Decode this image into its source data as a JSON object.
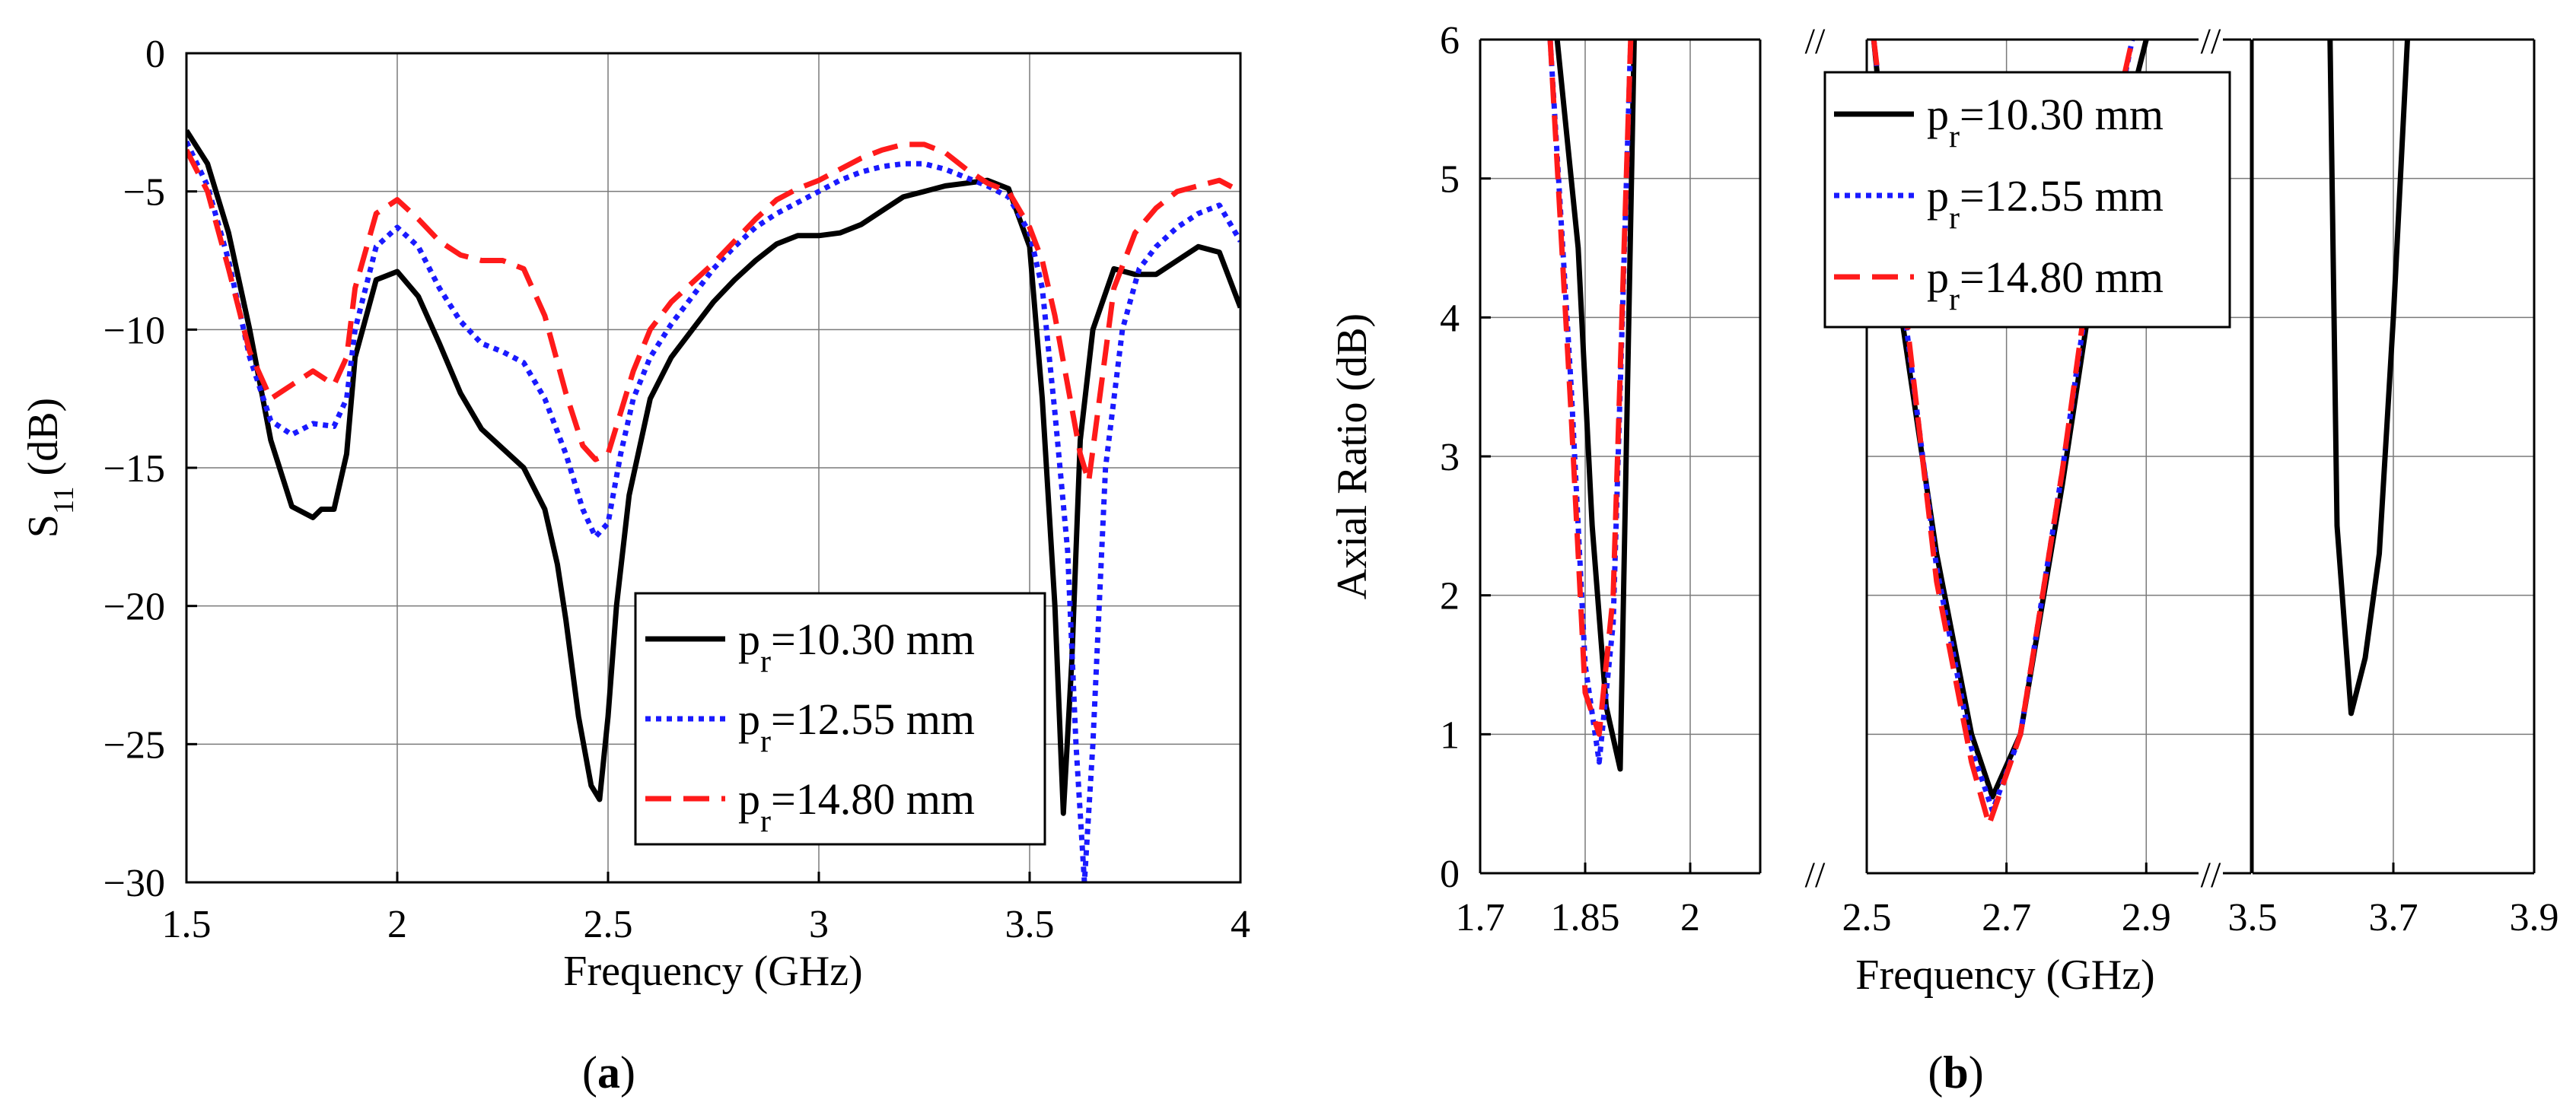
{
  "chart_data": [
    {
      "type": "line",
      "panel_label": "a",
      "xlabel": "Frequency (GHz)",
      "ylabel_main": "S",
      "ylabel_sub": "11",
      "ylabel_unit": " (dB)",
      "xlim": [
        1.5,
        4
      ],
      "ylim": [
        -30,
        0
      ],
      "xticks": [
        "1.5",
        "2",
        "2.5",
        "3",
        "3.5",
        "4"
      ],
      "yticks": [
        "0",
        "−5",
        "−10",
        "−15",
        "−20",
        "−25",
        "−30"
      ],
      "grid": true,
      "legend_position": "bottom-right",
      "series": [
        {
          "name_base": "p",
          "name_sub": "r",
          "name_rest": "=10.30 mm",
          "color": "#000000",
          "dash": "solid",
          "x": [
            1.5,
            1.55,
            1.6,
            1.65,
            1.7,
            1.75,
            1.8,
            1.82,
            1.85,
            1.88,
            1.9,
            1.95,
            2.0,
            2.05,
            2.1,
            2.15,
            2.2,
            2.25,
            2.3,
            2.35,
            2.38,
            2.4,
            2.43,
            2.46,
            2.48,
            2.5,
            2.52,
            2.55,
            2.6,
            2.65,
            2.7,
            2.75,
            2.8,
            2.85,
            2.9,
            2.95,
            3.0,
            3.05,
            3.1,
            3.15,
            3.2,
            3.25,
            3.3,
            3.35,
            3.4,
            3.45,
            3.5,
            3.53,
            3.56,
            3.58,
            3.6,
            3.62,
            3.65,
            3.7,
            3.75,
            3.8,
            3.85,
            3.9,
            3.95,
            4.0
          ],
          "y": [
            -2.8,
            -4.0,
            -6.5,
            -10.0,
            -14.0,
            -16.4,
            -16.8,
            -16.5,
            -16.5,
            -14.5,
            -11.0,
            -8.2,
            -7.9,
            -8.8,
            -10.5,
            -12.3,
            -13.6,
            -14.3,
            -15.0,
            -16.5,
            -18.5,
            -20.5,
            -24.0,
            -26.5,
            -27.0,
            -24.0,
            -20.0,
            -16.0,
            -12.5,
            -11.0,
            -10.0,
            -9.0,
            -8.2,
            -7.5,
            -6.9,
            -6.6,
            -6.6,
            -6.5,
            -6.2,
            -5.7,
            -5.2,
            -5.0,
            -4.8,
            -4.7,
            -4.6,
            -4.9,
            -7.0,
            -12.5,
            -20.0,
            -27.5,
            -22.0,
            -14.0,
            -10.0,
            -7.8,
            -8.0,
            -8.0,
            -7.5,
            -7.0,
            -7.2,
            -9.2
          ]
        },
        {
          "name_base": "p",
          "name_sub": "r",
          "name_rest": "=12.55 mm",
          "color": "#1a1aff",
          "dash": "dotted",
          "x": [
            1.5,
            1.55,
            1.6,
            1.65,
            1.7,
            1.75,
            1.8,
            1.85,
            1.88,
            1.9,
            1.95,
            2.0,
            2.05,
            2.1,
            2.15,
            2.2,
            2.25,
            2.3,
            2.35,
            2.4,
            2.44,
            2.47,
            2.5,
            2.53,
            2.56,
            2.6,
            2.65,
            2.7,
            2.75,
            2.8,
            2.85,
            2.9,
            2.95,
            3.0,
            3.05,
            3.1,
            3.15,
            3.2,
            3.25,
            3.3,
            3.35,
            3.4,
            3.45,
            3.5,
            3.53,
            3.56,
            3.59,
            3.61,
            3.63,
            3.65,
            3.68,
            3.72,
            3.76,
            3.8,
            3.85,
            3.9,
            3.95,
            4.0
          ],
          "y": [
            -3.2,
            -4.8,
            -7.5,
            -11.0,
            -13.3,
            -13.8,
            -13.4,
            -13.5,
            -12.5,
            -10.0,
            -7.0,
            -6.3,
            -7.0,
            -8.5,
            -9.7,
            -10.5,
            -10.8,
            -11.2,
            -12.5,
            -14.5,
            -16.5,
            -17.5,
            -17.0,
            -14.5,
            -12.5,
            -11.0,
            -9.8,
            -8.8,
            -7.8,
            -7.0,
            -6.3,
            -5.8,
            -5.4,
            -5.0,
            -4.6,
            -4.3,
            -4.1,
            -4.0,
            -4.0,
            -4.2,
            -4.5,
            -4.8,
            -5.2,
            -6.5,
            -8.5,
            -13.0,
            -18.0,
            -25.0,
            -30.0,
            -25.0,
            -15.0,
            -10.0,
            -7.8,
            -7.0,
            -6.3,
            -5.8,
            -5.5,
            -6.8
          ]
        },
        {
          "name_base": "p",
          "name_sub": "r",
          "name_rest": "=14.80 mm",
          "color": "#ff1a1a",
          "dash": "dashed",
          "x": [
            1.5,
            1.55,
            1.6,
            1.65,
            1.7,
            1.75,
            1.8,
            1.85,
            1.88,
            1.9,
            1.95,
            2.0,
            2.05,
            2.1,
            2.15,
            2.2,
            2.25,
            2.3,
            2.35,
            2.4,
            2.44,
            2.47,
            2.5,
            2.53,
            2.56,
            2.6,
            2.65,
            2.7,
            2.75,
            2.8,
            2.85,
            2.9,
            2.95,
            3.0,
            3.05,
            3.1,
            3.15,
            3.2,
            3.25,
            3.3,
            3.35,
            3.4,
            3.45,
            3.5,
            3.53,
            3.56,
            3.59,
            3.62,
            3.64,
            3.67,
            3.7,
            3.75,
            3.8,
            3.85,
            3.9,
            3.95,
            4.0
          ],
          "y": [
            -3.5,
            -5.0,
            -7.8,
            -10.8,
            -12.5,
            -12.0,
            -11.5,
            -12.0,
            -11.0,
            -8.5,
            -5.8,
            -5.3,
            -6.0,
            -6.8,
            -7.3,
            -7.5,
            -7.5,
            -7.8,
            -9.5,
            -12.3,
            -14.2,
            -14.7,
            -14.5,
            -13.0,
            -11.5,
            -10.0,
            -9.0,
            -8.3,
            -7.6,
            -6.8,
            -6.0,
            -5.3,
            -4.9,
            -4.6,
            -4.2,
            -3.8,
            -3.5,
            -3.3,
            -3.3,
            -3.6,
            -4.2,
            -4.7,
            -5.0,
            -6.3,
            -7.5,
            -9.5,
            -12.0,
            -14.5,
            -15.5,
            -12.0,
            -8.5,
            -6.5,
            -5.6,
            -5.0,
            -4.8,
            -4.6,
            -5.0
          ]
        }
      ]
    },
    {
      "type": "line",
      "panel_label": "b",
      "xlabel": "Frequency (GHz)",
      "ylabel": "Axial Ratio (dB)",
      "ylim": [
        0,
        6
      ],
      "yticks": [
        "0",
        "1",
        "2",
        "3",
        "4",
        "5",
        "6"
      ],
      "grid": true,
      "legend_position": "top-right",
      "broken_axis": true,
      "break_mark": "//",
      "segments": [
        {
          "xlim": [
            1.7,
            2.1
          ],
          "xticks": [
            1.7,
            1.85,
            2.0
          ],
          "xtick_labels": [
            "1.7",
            "1.85",
            "2"
          ]
        },
        {
          "xlim": [
            2.5,
            3.05
          ],
          "xticks": [
            2.5,
            2.7,
            2.9
          ],
          "xtick_labels": [
            "2.5",
            "2.7",
            "2.9"
          ]
        },
        {
          "xlim": [
            3.5,
            3.9
          ],
          "xticks": [
            3.5,
            3.7,
            3.9
          ],
          "xtick_labels": [
            "3.5",
            "3.7",
            "3.9"
          ]
        }
      ],
      "series": [
        {
          "name_base": "p",
          "name_sub": "r",
          "name_rest": "=10.30 mm",
          "color": "#000000",
          "dash": "solid",
          "x": [
            1.81,
            1.84,
            1.86,
            1.88,
            1.9,
            1.92,
            null,
            2.51,
            2.55,
            2.6,
            2.65,
            2.68,
            2.72,
            2.78,
            2.84,
            2.9,
            null,
            3.61,
            3.62,
            3.64,
            3.66,
            3.68,
            3.7,
            3.72
          ],
          "y": [
            6.0,
            4.5,
            2.5,
            1.2,
            0.75,
            6.0,
            null,
            6.0,
            4.0,
            2.3,
            1.0,
            0.55,
            1.0,
            2.8,
            4.8,
            6.0,
            null,
            6.0,
            2.5,
            1.15,
            1.55,
            2.3,
            4.0,
            6.0
          ]
        },
        {
          "name_base": "p",
          "name_sub": "r",
          "name_rest": "=12.55 mm",
          "color": "#1a1aff",
          "dash": "dotted",
          "x": [
            1.8,
            1.83,
            1.85,
            1.87,
            1.89,
            1.915,
            null,
            2.51,
            2.55,
            2.6,
            2.65,
            2.68,
            2.72,
            2.78,
            2.84,
            2.88
          ],
          "y": [
            6.0,
            3.5,
            1.5,
            0.8,
            1.8,
            6.0,
            null,
            6.0,
            4.2,
            2.2,
            0.9,
            0.45,
            1.0,
            2.9,
            5.0,
            6.0
          ]
        },
        {
          "name_base": "p",
          "name_sub": "r",
          "name_rest": "=14.80 mm",
          "color": "#ff1a1a",
          "dash": "dashed",
          "x": [
            1.8,
            1.83,
            1.85,
            1.87,
            1.89,
            1.915,
            null,
            2.51,
            2.55,
            2.6,
            2.65,
            2.675,
            2.72,
            2.78,
            2.84,
            2.88
          ],
          "y": [
            6.0,
            3.3,
            1.3,
            1.0,
            2.0,
            6.0,
            null,
            6.0,
            4.3,
            2.1,
            0.8,
            0.35,
            1.0,
            2.9,
            5.1,
            6.0
          ]
        }
      ]
    }
  ]
}
